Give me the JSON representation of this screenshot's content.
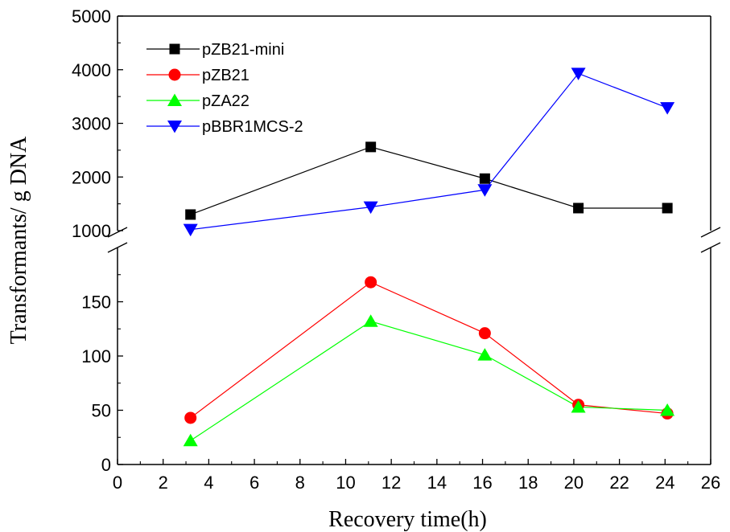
{
  "chart_data": {
    "type": "line",
    "xlabel": "Recovery time(h)",
    "ylabel": "Transformants/ g DNA",
    "xlim": [
      0,
      26
    ],
    "x_ticks": [
      "0",
      "2",
      "4",
      "6",
      "8",
      "10",
      "12",
      "14",
      "16",
      "18",
      "20",
      "22",
      "24",
      "26"
    ],
    "y_axis_break": true,
    "y_lower_lim": [
      0,
      200
    ],
    "y_lower_ticks": [
      "0",
      "50",
      "100",
      "150"
    ],
    "y_upper_lim": [
      1000,
      5000
    ],
    "y_upper_ticks": [
      "1000",
      "2000",
      "3000",
      "4000",
      "5000"
    ],
    "grid": false,
    "legend_position": "top-left",
    "x": [
      3.2,
      11.1,
      16.1,
      20.2,
      24.1
    ],
    "series": [
      {
        "name": "pZB21-mini",
        "marker": "square",
        "color": "#000000",
        "segment": "upper",
        "values": [
          1300,
          2560,
          1970,
          1420,
          1420
        ]
      },
      {
        "name": "pZB21",
        "marker": "circle",
        "color": "#ff0000",
        "segment": "lower",
        "values": [
          43,
          168,
          121,
          55,
          47
        ]
      },
      {
        "name": "pZA22",
        "marker": "triangle-up",
        "color": "#00ff00",
        "segment": "lower",
        "values": [
          22,
          132,
          101,
          53,
          50
        ]
      },
      {
        "name": "pBBR1MCS-2",
        "marker": "triangle-down",
        "color": "#0000ff",
        "segment": "upper",
        "values": [
          1020,
          1440,
          1760,
          3930,
          3290
        ]
      }
    ]
  }
}
